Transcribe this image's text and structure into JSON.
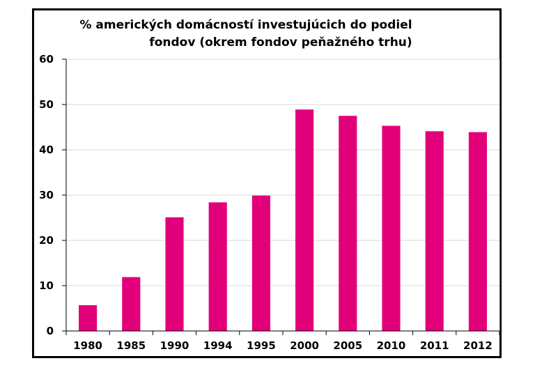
{
  "chart_data": {
    "type": "bar",
    "title_lines": [
      "% amerických domácností investujúcich do podiel",
      "fondov (okrem fondov peňažného trhu)"
    ],
    "categories": [
      "1980",
      "1985",
      "1990",
      "1994",
      "1995",
      "2000",
      "2005",
      "2010",
      "2011",
      "2012"
    ],
    "values": [
      5.7,
      11.9,
      25.1,
      28.4,
      29.9,
      48.9,
      47.5,
      45.3,
      44.1,
      43.9
    ],
    "xlabel": "",
    "ylabel": "",
    "ylim": [
      0,
      60
    ],
    "yticks": [
      0,
      10,
      20,
      30,
      40,
      50,
      60
    ],
    "grid": true,
    "bar_color": "#e2007a"
  }
}
